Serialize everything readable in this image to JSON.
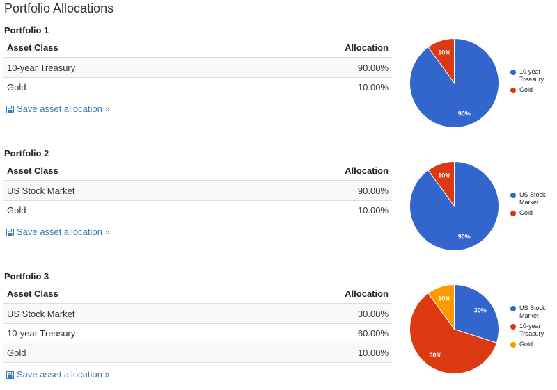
{
  "page_title": "Portfolio Allocations",
  "table_headers": {
    "asset_class": "Asset Class",
    "allocation": "Allocation"
  },
  "save_label": "Save asset allocation »",
  "colors": {
    "blue": "#3366cc",
    "red": "#dc3912",
    "orange": "#ff9900",
    "link": "#337ab7"
  },
  "portfolios": [
    {
      "title": "Portfolio 1",
      "rows": [
        {
          "asset": "10-year Treasury",
          "allocation": "90.00%"
        },
        {
          "asset": "Gold",
          "allocation": "10.00%"
        }
      ]
    },
    {
      "title": "Portfolio 2",
      "rows": [
        {
          "asset": "US Stock Market",
          "allocation": "90.00%"
        },
        {
          "asset": "Gold",
          "allocation": "10.00%"
        }
      ]
    },
    {
      "title": "Portfolio 3",
      "rows": [
        {
          "asset": "US Stock Market",
          "allocation": "30.00%"
        },
        {
          "asset": "10-year Treasury",
          "allocation": "60.00%"
        },
        {
          "asset": "Gold",
          "allocation": "10.00%"
        }
      ]
    }
  ],
  "chart_data": [
    {
      "type": "pie",
      "slices": [
        {
          "label": "10-year Treasury",
          "value": 90,
          "color": "#3366cc",
          "text": "90%"
        },
        {
          "label": "Gold",
          "value": 10,
          "color": "#dc3912",
          "text": "10%"
        }
      ],
      "legend_position": "right"
    },
    {
      "type": "pie",
      "slices": [
        {
          "label": "US Stock Market",
          "value": 90,
          "color": "#3366cc",
          "text": "90%"
        },
        {
          "label": "Gold",
          "value": 10,
          "color": "#dc3912",
          "text": "10%"
        }
      ],
      "legend_position": "right"
    },
    {
      "type": "pie",
      "slices": [
        {
          "label": "US Stock Market",
          "value": 30,
          "color": "#3366cc",
          "text": "30%"
        },
        {
          "label": "10-year Treasury",
          "value": 60,
          "color": "#dc3912",
          "text": "60%"
        },
        {
          "label": "Gold",
          "value": 10,
          "color": "#ff9900",
          "text": "10%"
        }
      ],
      "legend_position": "right"
    }
  ]
}
